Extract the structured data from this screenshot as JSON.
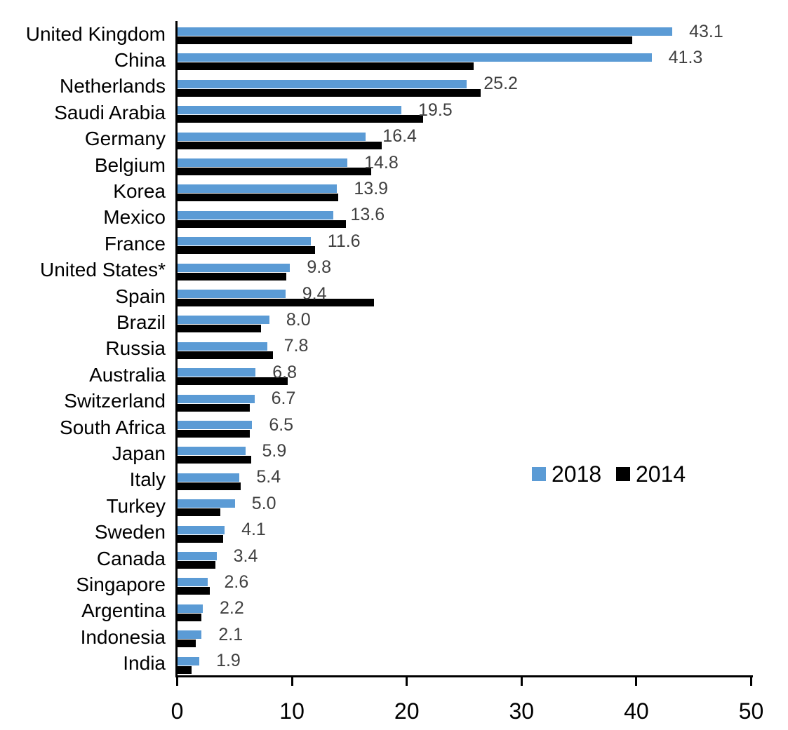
{
  "chart_data": {
    "type": "bar",
    "orientation": "horizontal",
    "title": "",
    "xlabel": "",
    "ylabel": "",
    "xlim": [
      0,
      50
    ],
    "x_ticks": [
      "0",
      "10",
      "20",
      "30",
      "40",
      "50"
    ],
    "grid": false,
    "legend_position": "middle-right",
    "categories": [
      "United Kingdom",
      "China",
      "Netherlands",
      "Saudi Arabia",
      "Germany",
      "Belgium",
      "Korea",
      "Mexico",
      "France",
      "United States*",
      "Spain",
      "Brazil",
      "Russia",
      "Australia",
      "Switzerland",
      "South Africa",
      "Japan",
      "Italy",
      "Turkey",
      "Sweden",
      "Canada",
      "Singapore",
      "Argentina",
      "Indonesia",
      "India"
    ],
    "series": [
      {
        "name": "2018",
        "color": "#5B9BD5",
        "values": [
          43.1,
          41.3,
          25.2,
          19.5,
          16.4,
          14.8,
          13.9,
          13.6,
          11.6,
          9.8,
          9.4,
          8.0,
          7.8,
          6.8,
          6.7,
          6.5,
          5.9,
          5.4,
          5.0,
          4.1,
          3.4,
          2.6,
          2.2,
          2.1,
          1.9
        ],
        "data_labels": [
          "43.1",
          "41.3",
          "25.2",
          "19.5",
          "16.4",
          "14.8",
          "13.9",
          "13.6",
          "11.6",
          "9.8",
          "9.4",
          "8.0",
          "7.8",
          "6.8",
          "6.7",
          "6.5",
          "5.9",
          "5.4",
          "5.0",
          "4.1",
          "3.4",
          "2.6",
          "2.2",
          "2.1",
          "1.9"
        ]
      },
      {
        "name": "2014",
        "color": "#000000",
        "values": [
          39.6,
          25.8,
          26.4,
          21.4,
          17.8,
          16.9,
          14.0,
          14.7,
          12.0,
          9.5,
          17.1,
          7.3,
          8.3,
          9.6,
          6.3,
          6.3,
          6.4,
          5.5,
          3.7,
          4.0,
          3.3,
          2.8,
          2.1,
          1.6,
          1.2
        ],
        "data_labels": []
      }
    ]
  },
  "legend": {
    "items": [
      {
        "label": "2018",
        "color": "#5B9BD5"
      },
      {
        "label": "2014",
        "color": "#000000"
      }
    ]
  },
  "colors": {
    "background": "#FFFFFF",
    "axis": "#000000",
    "value_label": "#404040",
    "category_label": "#000000",
    "series_2018": "#5B9BD5",
    "series_2014": "#000000"
  }
}
